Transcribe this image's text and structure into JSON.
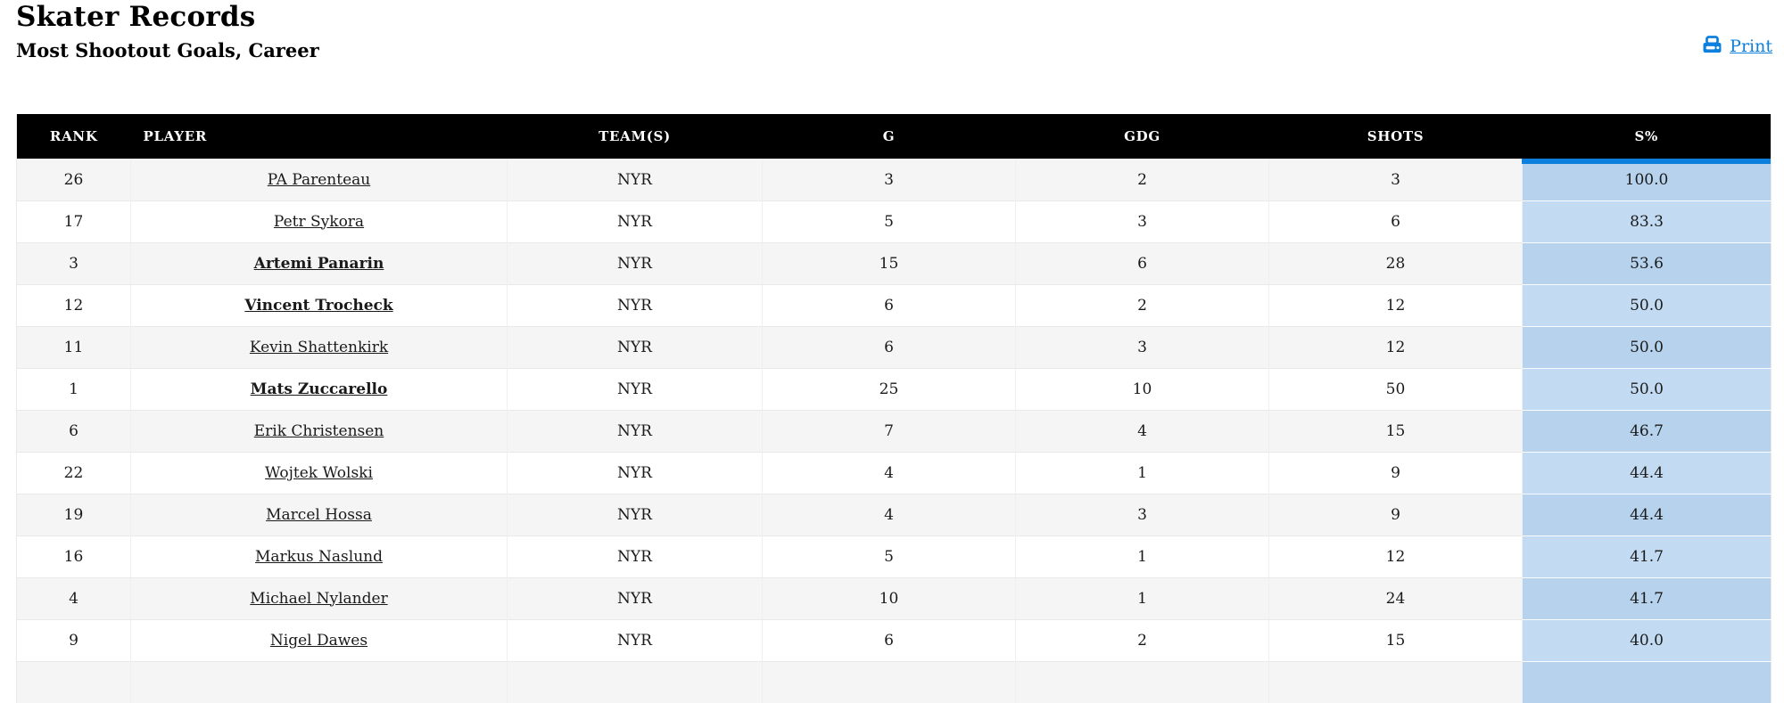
{
  "page": {
    "title": "Skater Records",
    "subtitle": "Most Shootout Goals, Career",
    "print_label": "Print"
  },
  "colors": {
    "accent_blue": "#0d80dd",
    "header_bg": "#000000",
    "header_text": "#ffffff",
    "row_stripe": "#f5f5f5",
    "sorted_cell_odd_row": "#b6d2ec",
    "sorted_cell_even_row": "#c2dbf2"
  },
  "table": {
    "columns": [
      {
        "key": "rank",
        "label": "RANK"
      },
      {
        "key": "player",
        "label": "PLAYER"
      },
      {
        "key": "team",
        "label": "TEAM(S)"
      },
      {
        "key": "g",
        "label": "G"
      },
      {
        "key": "gdg",
        "label": "GDG"
      },
      {
        "key": "shots",
        "label": "SHOTS"
      },
      {
        "key": "s_pct",
        "label": "S%"
      }
    ],
    "sorted_column": "S%",
    "rows": [
      {
        "rank": "26",
        "player": "PA Parenteau",
        "bold": false,
        "team": "NYR",
        "g": "3",
        "gdg": "2",
        "shots": "3",
        "s_pct": "100.0"
      },
      {
        "rank": "17",
        "player": "Petr Sykora",
        "bold": false,
        "team": "NYR",
        "g": "5",
        "gdg": "3",
        "shots": "6",
        "s_pct": "83.3"
      },
      {
        "rank": "3",
        "player": "Artemi Panarin",
        "bold": true,
        "team": "NYR",
        "g": "15",
        "gdg": "6",
        "shots": "28",
        "s_pct": "53.6"
      },
      {
        "rank": "12",
        "player": "Vincent Trocheck",
        "bold": true,
        "team": "NYR",
        "g": "6",
        "gdg": "2",
        "shots": "12",
        "s_pct": "50.0"
      },
      {
        "rank": "11",
        "player": "Kevin Shattenkirk",
        "bold": false,
        "team": "NYR",
        "g": "6",
        "gdg": "3",
        "shots": "12",
        "s_pct": "50.0"
      },
      {
        "rank": "1",
        "player": "Mats Zuccarello",
        "bold": true,
        "team": "NYR",
        "g": "25",
        "gdg": "10",
        "shots": "50",
        "s_pct": "50.0"
      },
      {
        "rank": "6",
        "player": "Erik Christensen",
        "bold": false,
        "team": "NYR",
        "g": "7",
        "gdg": "4",
        "shots": "15",
        "s_pct": "46.7"
      },
      {
        "rank": "22",
        "player": "Wojtek Wolski",
        "bold": false,
        "team": "NYR",
        "g": "4",
        "gdg": "1",
        "shots": "9",
        "s_pct": "44.4"
      },
      {
        "rank": "19",
        "player": "Marcel Hossa",
        "bold": false,
        "team": "NYR",
        "g": "4",
        "gdg": "3",
        "shots": "9",
        "s_pct": "44.4"
      },
      {
        "rank": "16",
        "player": "Markus Naslund",
        "bold": false,
        "team": "NYR",
        "g": "5",
        "gdg": "1",
        "shots": "12",
        "s_pct": "41.7"
      },
      {
        "rank": "4",
        "player": "Michael Nylander",
        "bold": false,
        "team": "NYR",
        "g": "10",
        "gdg": "1",
        "shots": "24",
        "s_pct": "41.7"
      },
      {
        "rank": "9",
        "player": "Nigel Dawes",
        "bold": false,
        "team": "NYR",
        "g": "6",
        "gdg": "2",
        "shots": "15",
        "s_pct": "40.0"
      }
    ],
    "partial_row_visible": true
  }
}
